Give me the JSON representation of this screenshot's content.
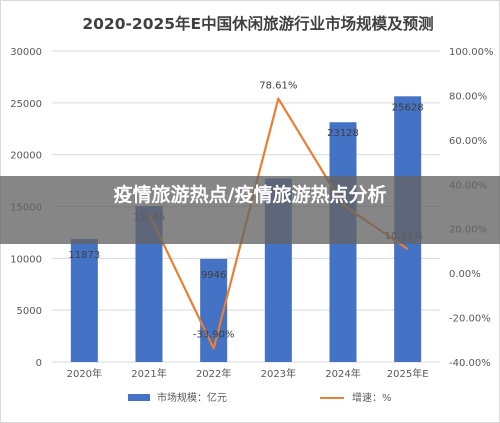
{
  "chart_data": {
    "type": "bar",
    "title": "2020-2025年E中国休闲旅游行业市场规模及预测",
    "categories": [
      "2020年",
      "2021年",
      "2022年",
      "2023年",
      "2024年",
      "2025年E"
    ],
    "series": [
      {
        "name": "市场规模：亿元",
        "type": "bar",
        "axis": "left",
        "color": "#4472c4",
        "values": [
          11873,
          15046,
          9946,
          17700,
          23128,
          25628
        ],
        "data_labels": [
          "11873",
          "15046",
          "9946",
          "",
          "23128",
          "25628"
        ]
      },
      {
        "name": "增速：%",
        "type": "line",
        "axis": "right",
        "color": "#ed7d31",
        "values": [
          null,
          26.7,
          -33.9,
          78.61,
          30.7,
          10.81
        ],
        "data_labels": [
          "",
          "",
          "-33.90%",
          "78.61%",
          "",
          "10.81%"
        ]
      }
    ],
    "y_left": {
      "range": [
        0,
        30000
      ],
      "ticks": [
        "0",
        "5000",
        "10000",
        "15000",
        "20000",
        "25000",
        "30000"
      ]
    },
    "y_right": {
      "range": [
        -40,
        100
      ],
      "ticks": [
        "-40.00%",
        "-20.00%",
        "0.00%",
        "20.00%",
        "40.00%",
        "60.00%",
        "80.00%",
        "100.00%"
      ]
    },
    "grid": true,
    "legend_position": "bottom"
  },
  "overlay": {
    "text": "疫情旅游热点/疫情旅游热点分析"
  },
  "colors": {
    "bar": "#4472c4",
    "line": "#ed7d31",
    "grid": "#d9d9d9",
    "axis_text": "#595959",
    "title": "#404040"
  }
}
